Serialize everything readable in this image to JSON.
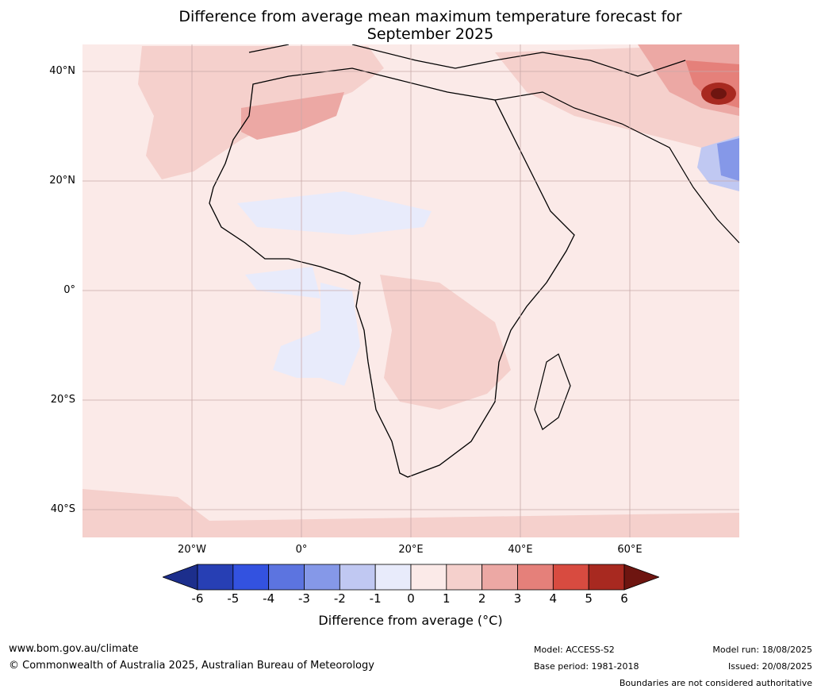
{
  "title_line1": "Difference from average mean maximum temperature forecast for",
  "title_line2": "September 2025",
  "lat_labels": [
    "40°N",
    "20°N",
    "0°",
    "20°S",
    "40°S"
  ],
  "lon_labels": [
    "20°W",
    "0°",
    "20°E",
    "40°E",
    "60°E"
  ],
  "colorbar": {
    "ticks": [
      "-6",
      "-5",
      "-4",
      "-3",
      "-2",
      "-1",
      "0",
      "1",
      "2",
      "3",
      "4",
      "5",
      "6"
    ],
    "colors": [
      "#1c2e8c",
      "#273fb4",
      "#3352e0",
      "#5c74e0",
      "#8598e8",
      "#c0c8f2",
      "#e8ebfb",
      "#fbeae8",
      "#f5d0cc",
      "#eca8a4",
      "#e5807a",
      "#d84b40",
      "#a82920",
      "#6e1510"
    ],
    "label": "Difference from average (°C)"
  },
  "footer": {
    "website": "www.bom.gov.au/climate",
    "copyright": "© Commonwealth of Australia 2025, Australian Bureau of Meteorology",
    "model": "Model: ACCESS-S2",
    "base_period": "Base period: 1981-2018",
    "model_run": "Model run: 18/08/2025",
    "issued": "Issued: 20/08/2025",
    "disclaimer": "Boundaries are not considered authoritative"
  }
}
